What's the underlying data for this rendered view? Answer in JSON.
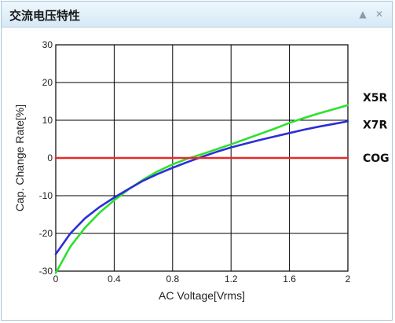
{
  "panel": {
    "title": "交流电压特性",
    "collapse_icon": "triangle-up-icon",
    "close_icon": "close-icon",
    "collapse_glyph": "▲",
    "close_glyph": "✕"
  },
  "chart_data": {
    "type": "line",
    "title": "",
    "xlabel": "AC Voltage[Vrms]",
    "ylabel": "Cap. Change Rate[%]",
    "xlim": [
      0,
      2
    ],
    "ylim": [
      -30,
      30
    ],
    "x_ticks": [
      "0",
      "0.4",
      "0.8",
      "1.2",
      "1.6",
      "2"
    ],
    "y_ticks": [
      "30",
      "20",
      "10",
      "0",
      "-10",
      "-20",
      "-30"
    ],
    "grid": true,
    "legend": "right-of-line-ends",
    "series": [
      {
        "name": "X5R",
        "color": "#2ee02e",
        "x": [
          0,
          0.1,
          0.2,
          0.3,
          0.4,
          0.5,
          0.6,
          0.7,
          0.8,
          0.9,
          1.0,
          1.1,
          1.2,
          1.3,
          1.4,
          1.5,
          1.6,
          1.7,
          1.8,
          1.9,
          2.0
        ],
        "y": [
          -30.5,
          -23.5,
          -18.5,
          -14.5,
          -11.2,
          -8.3,
          -5.7,
          -3.5,
          -1.7,
          -0.2,
          1.0,
          2.3,
          3.6,
          5.0,
          6.4,
          7.8,
          9.3,
          10.6,
          11.8,
          12.9,
          14.0
        ]
      },
      {
        "name": "X7R",
        "color": "#2d2dd8",
        "x": [
          0,
          0.1,
          0.2,
          0.3,
          0.4,
          0.5,
          0.6,
          0.7,
          0.8,
          0.9,
          1.0,
          1.1,
          1.2,
          1.3,
          1.4,
          1.5,
          1.6,
          1.7,
          1.8,
          1.9,
          2.0
        ],
        "y": [
          -25.5,
          -20.0,
          -16.0,
          -13.0,
          -10.5,
          -8.2,
          -6.0,
          -4.2,
          -2.6,
          -1.1,
          0.3,
          1.6,
          2.8,
          3.8,
          4.8,
          5.7,
          6.6,
          7.5,
          8.3,
          9.0,
          9.7
        ]
      },
      {
        "name": "COG",
        "color": "#e52a2a",
        "x": [
          0,
          2.0
        ],
        "y": [
          0,
          0
        ]
      }
    ]
  }
}
